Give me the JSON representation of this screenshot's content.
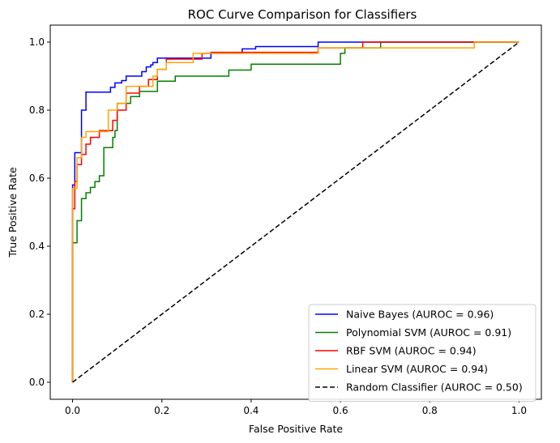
{
  "chart_data": {
    "type": "line",
    "title": "ROC Curve Comparison for Classifiers",
    "xlabel": "False Positive Rate",
    "ylabel": "True Positive Rate",
    "xlim": [
      -0.05,
      1.05
    ],
    "ylim": [
      -0.05,
      1.05
    ],
    "xticks": [
      "0.0",
      "0.2",
      "0.4",
      "0.6",
      "0.8",
      "1.0"
    ],
    "yticks": [
      "0.0",
      "0.2",
      "0.4",
      "0.6",
      "0.8",
      "1.0"
    ],
    "grid": false,
    "legend_position": "lower-right",
    "series": [
      {
        "name": "Naive Bayes (AUROC = 0.96)",
        "color": "#0000ff",
        "dash": "solid",
        "x": [
          0,
          0,
          0.005,
          0.005,
          0.02,
          0.02,
          0.03,
          0.03,
          0.085,
          0.085,
          0.095,
          0.095,
          0.11,
          0.11,
          0.12,
          0.12,
          0.155,
          0.155,
          0.165,
          0.165,
          0.175,
          0.175,
          0.18,
          0.18,
          0.19,
          0.19,
          0.215,
          0.215,
          0.31,
          0.31,
          0.38,
          0.38,
          0.41,
          0.41,
          0.55,
          0.55,
          1.0
        ],
        "y": [
          0,
          0.58,
          0.58,
          0.675,
          0.675,
          0.8,
          0.8,
          0.853,
          0.853,
          0.867,
          0.867,
          0.88,
          0.88,
          0.887,
          0.887,
          0.9,
          0.9,
          0.913,
          0.913,
          0.927,
          0.927,
          0.933,
          0.933,
          0.94,
          0.94,
          0.953,
          0.953,
          0.953,
          0.953,
          0.967,
          0.967,
          0.98,
          0.98,
          0.987,
          0.987,
          1.0,
          1.0
        ]
      },
      {
        "name": "Polynomial SVM (AUROC = 0.91)",
        "color": "#008000",
        "dash": "solid",
        "x": [
          0,
          0,
          0.01,
          0.01,
          0.02,
          0.02,
          0.03,
          0.03,
          0.04,
          0.04,
          0.05,
          0.05,
          0.06,
          0.06,
          0.07,
          0.07,
          0.09,
          0.09,
          0.095,
          0.095,
          0.1,
          0.1,
          0.13,
          0.13,
          0.15,
          0.15,
          0.19,
          0.19,
          0.23,
          0.23,
          0.35,
          0.35,
          0.4,
          0.4,
          0.6,
          0.6,
          0.61,
          0.61,
          0.69,
          0.69,
          1.0
        ],
        "y": [
          0,
          0.41,
          0.41,
          0.475,
          0.475,
          0.54,
          0.54,
          0.557,
          0.557,
          0.573,
          0.573,
          0.59,
          0.59,
          0.607,
          0.607,
          0.69,
          0.69,
          0.72,
          0.72,
          0.74,
          0.74,
          0.82,
          0.82,
          0.84,
          0.84,
          0.855,
          0.855,
          0.885,
          0.885,
          0.9,
          0.9,
          0.918,
          0.918,
          0.935,
          0.935,
          0.967,
          0.967,
          0.983,
          0.983,
          1.0,
          1.0
        ]
      },
      {
        "name": "RBF SVM (AUROC = 0.94)",
        "color": "#ff0000",
        "dash": "solid",
        "x": [
          0,
          0,
          0.005,
          0.005,
          0.01,
          0.01,
          0.02,
          0.02,
          0.03,
          0.03,
          0.04,
          0.04,
          0.06,
          0.06,
          0.09,
          0.09,
          0.1,
          0.1,
          0.12,
          0.12,
          0.15,
          0.15,
          0.17,
          0.17,
          0.19,
          0.19,
          0.21,
          0.21,
          0.29,
          0.29,
          0.31,
          0.31,
          0.55,
          0.55,
          0.65,
          0.65,
          1.0
        ],
        "y": [
          0,
          0.51,
          0.51,
          0.59,
          0.59,
          0.64,
          0.64,
          0.67,
          0.67,
          0.7,
          0.7,
          0.72,
          0.72,
          0.74,
          0.74,
          0.77,
          0.77,
          0.8,
          0.8,
          0.85,
          0.85,
          0.87,
          0.87,
          0.89,
          0.89,
          0.92,
          0.92,
          0.95,
          0.95,
          0.967,
          0.967,
          0.97,
          0.97,
          0.983,
          0.983,
          1.0,
          1.0
        ]
      },
      {
        "name": "Linear SVM (AUROC = 0.94)",
        "color": "#ffa500",
        "dash": "solid",
        "x": [
          0,
          0,
          0.01,
          0.01,
          0.02,
          0.02,
          0.03,
          0.03,
          0.06,
          0.06,
          0.08,
          0.08,
          0.1,
          0.1,
          0.12,
          0.12,
          0.16,
          0.16,
          0.18,
          0.18,
          0.19,
          0.19,
          0.2,
          0.2,
          0.21,
          0.21,
          0.27,
          0.27,
          0.3,
          0.3,
          0.55,
          0.55,
          0.9,
          0.9,
          1.0
        ],
        "y": [
          0,
          0.57,
          0.57,
          0.66,
          0.66,
          0.72,
          0.72,
          0.737,
          0.737,
          0.737,
          0.737,
          0.8,
          0.8,
          0.82,
          0.82,
          0.87,
          0.87,
          0.87,
          0.87,
          0.9,
          0.9,
          0.92,
          0.92,
          0.92,
          0.92,
          0.94,
          0.94,
          0.967,
          0.967,
          0.967,
          0.967,
          0.983,
          0.983,
          1.0,
          1.0
        ]
      },
      {
        "name": "Random Classifier (AUROC = 0.50)",
        "color": "#000000",
        "dash": "dashed",
        "x": [
          0,
          1
        ],
        "y": [
          0,
          1
        ]
      }
    ]
  }
}
